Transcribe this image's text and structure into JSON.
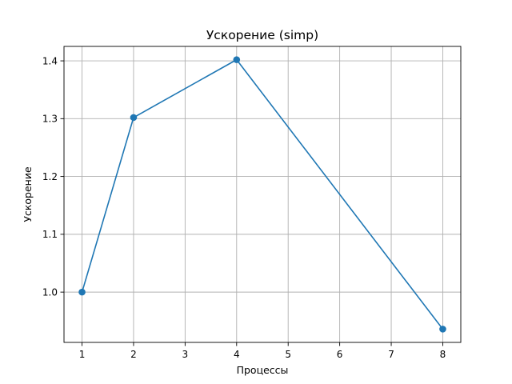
{
  "chart_data": {
    "type": "line",
    "title": "Ускорение (simp)",
    "xlabel": "Процессы",
    "ylabel": "Ускорение",
    "x": [
      1,
      2,
      4,
      8
    ],
    "series": [
      {
        "values": [
          1.0,
          1.302,
          1.402,
          0.936
        ],
        "color": "#1f77b4",
        "marker": "circle"
      }
    ],
    "xticks": [
      1,
      2,
      3,
      4,
      5,
      6,
      7,
      8
    ],
    "yticks": [
      1.0,
      1.1,
      1.2,
      1.3,
      1.4
    ],
    "xlim": [
      0.65,
      8.35
    ],
    "ylim": [
      0.913,
      1.425
    ],
    "grid": true
  }
}
